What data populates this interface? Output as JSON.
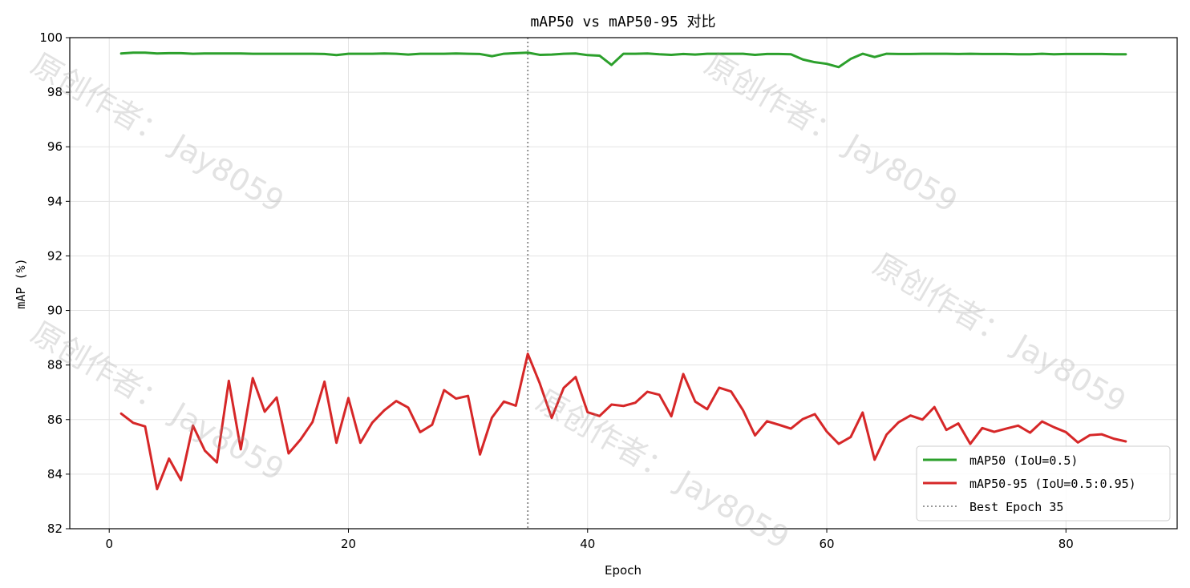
{
  "chart_data": {
    "type": "line",
    "title": "mAP50 vs mAP50-95 对比",
    "xlabel": "Epoch",
    "ylabel": "mAP (%)",
    "xlim": [
      -3.3,
      89.3
    ],
    "ylim": [
      82,
      100
    ],
    "xticks": [
      0,
      20,
      40,
      60,
      80
    ],
    "yticks": [
      82,
      84,
      86,
      88,
      90,
      92,
      94,
      96,
      98,
      100
    ],
    "grid": true,
    "legend_position": "bottom-right",
    "x": [
      1,
      2,
      3,
      4,
      5,
      6,
      7,
      8,
      9,
      10,
      11,
      12,
      13,
      14,
      15,
      16,
      17,
      18,
      19,
      20,
      21,
      22,
      23,
      24,
      25,
      26,
      27,
      28,
      29,
      30,
      31,
      32,
      33,
      34,
      35,
      36,
      37,
      38,
      39,
      40,
      41,
      42,
      43,
      44,
      45,
      46,
      47,
      48,
      49,
      50,
      51,
      52,
      53,
      54,
      55,
      56,
      57,
      58,
      59,
      60,
      61,
      62,
      63,
      64,
      65,
      66,
      67,
      68,
      69,
      70,
      71,
      72,
      73,
      74,
      75,
      76,
      77,
      78,
      79,
      80,
      81,
      82,
      83,
      84,
      85
    ],
    "series": [
      {
        "name": "mAP50 (IoU=0.5)",
        "color": "#2ca02c",
        "style": "solid",
        "values": [
          99.42,
          99.45,
          99.45,
          99.42,
          99.43,
          99.43,
          99.41,
          99.42,
          99.42,
          99.42,
          99.42,
          99.41,
          99.41,
          99.41,
          99.41,
          99.41,
          99.41,
          99.4,
          99.36,
          99.41,
          99.41,
          99.41,
          99.42,
          99.41,
          99.38,
          99.41,
          99.41,
          99.41,
          99.42,
          99.41,
          99.4,
          99.32,
          99.41,
          99.43,
          99.45,
          99.37,
          99.38,
          99.41,
          99.42,
          99.36,
          99.34,
          99.0,
          99.41,
          99.41,
          99.42,
          99.39,
          99.37,
          99.4,
          99.38,
          99.41,
          99.41,
          99.41,
          99.41,
          99.37,
          99.4,
          99.4,
          99.39,
          99.2,
          99.1,
          99.04,
          98.92,
          99.22,
          99.41,
          99.29,
          99.41,
          99.4,
          99.4,
          99.41,
          99.41,
          99.41,
          99.4,
          99.41,
          99.4,
          99.4,
          99.4,
          99.39,
          99.39,
          99.41,
          99.39,
          99.4,
          99.4,
          99.4,
          99.4,
          99.39,
          99.39
        ]
      },
      {
        "name": "mAP50-95 (IoU=0.5:0.95)",
        "color": "#d62728",
        "style": "solid",
        "values": [
          86.22,
          85.88,
          85.75,
          83.45,
          84.57,
          83.78,
          85.78,
          84.86,
          84.43,
          87.42,
          84.91,
          87.52,
          86.29,
          86.81,
          84.76,
          85.27,
          85.91,
          87.39,
          85.15,
          86.79,
          85.15,
          85.89,
          86.34,
          86.68,
          86.44,
          85.54,
          85.81,
          87.08,
          86.77,
          86.87,
          84.72,
          86.07,
          86.66,
          86.51,
          88.41,
          87.33,
          86.06,
          87.16,
          87.56,
          86.27,
          86.13,
          86.55,
          86.5,
          86.62,
          87.02,
          86.91,
          86.12,
          87.67,
          86.66,
          86.38,
          87.17,
          87.03,
          86.34,
          85.42,
          85.94,
          85.81,
          85.67,
          86.02,
          86.2,
          85.56,
          85.11,
          85.36,
          86.26,
          84.53,
          85.45,
          85.9,
          86.15,
          86.0,
          86.46,
          85.62,
          85.86,
          85.11,
          85.69,
          85.55,
          85.67,
          85.78,
          85.52,
          85.93,
          85.72,
          85.54,
          85.16,
          85.43,
          85.46,
          85.3,
          85.2
        ]
      }
    ],
    "reference_lines": [
      {
        "name": "Best Epoch 35",
        "axis": "x",
        "value": 35,
        "color": "#999999",
        "style": "dotted"
      }
    ],
    "watermark": "原创作者： Jay8059"
  }
}
